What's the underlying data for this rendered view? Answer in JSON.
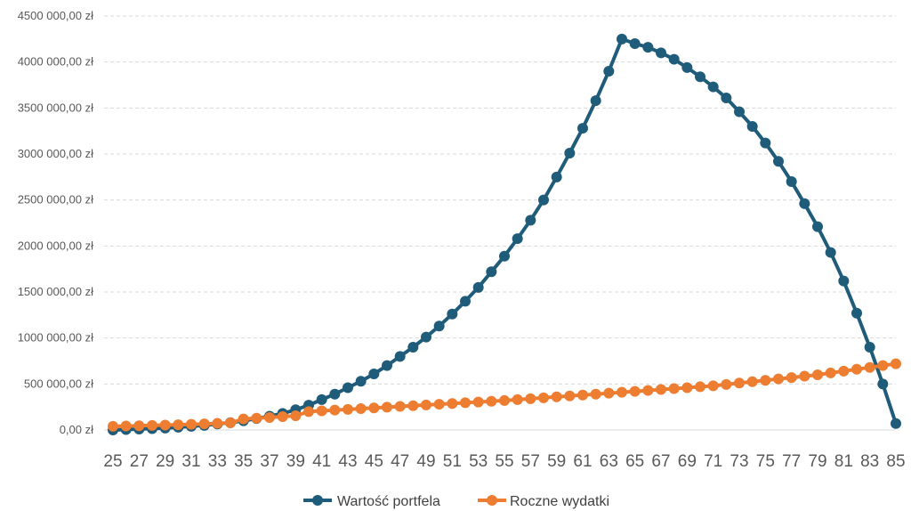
{
  "chart_data": {
    "type": "line",
    "x": [
      25,
      26,
      27,
      28,
      29,
      30,
      31,
      32,
      33,
      34,
      35,
      36,
      37,
      38,
      39,
      40,
      41,
      42,
      43,
      44,
      45,
      46,
      47,
      48,
      49,
      50,
      51,
      52,
      53,
      54,
      55,
      56,
      57,
      58,
      59,
      60,
      61,
      62,
      63,
      64,
      65,
      66,
      67,
      68,
      69,
      70,
      71,
      72,
      73,
      74,
      75,
      76,
      77,
      78,
      79,
      80,
      81,
      82,
      83,
      84,
      85
    ],
    "x_tick_labels": [
      "25",
      "27",
      "29",
      "31",
      "33",
      "35",
      "37",
      "39",
      "41",
      "43",
      "45",
      "47",
      "49",
      "51",
      "53",
      "55",
      "57",
      "59",
      "61",
      "63",
      "65",
      "67",
      "69",
      "71",
      "73",
      "75",
      "77",
      "79",
      "81",
      "83",
      "85"
    ],
    "ylim": [
      0,
      4500000
    ],
    "y_tick_labels": [
      "0,00 zł",
      "500 000,00 zł",
      "1000 000,00 zł",
      "1500 000,00 zł",
      "2000 000,00 zł",
      "2500 000,00 zł",
      "3000 000,00 zł",
      "3500 000,00 zł",
      "4000 000,00 zł",
      "4500 000,00 zł"
    ],
    "grid": true,
    "legend_position": "bottom",
    "series": [
      {
        "name": "Wartość portfela",
        "color": "#1f5c7a",
        "values": [
          0,
          5000,
          10000,
          15000,
          20000,
          30000,
          40000,
          50000,
          65000,
          80000,
          100000,
          125000,
          150000,
          180000,
          220000,
          270000,
          330000,
          390000,
          460000,
          530000,
          610000,
          700000,
          800000,
          900000,
          1010000,
          1130000,
          1260000,
          1400000,
          1550000,
          1720000,
          1890000,
          2080000,
          2280000,
          2500000,
          2750000,
          3010000,
          3280000,
          3580000,
          3900000,
          4250000,
          4200000,
          4160000,
          4100000,
          4030000,
          3940000,
          3840000,
          3730000,
          3610000,
          3460000,
          3300000,
          3120000,
          2920000,
          2700000,
          2460000,
          2210000,
          1930000,
          1620000,
          1270000,
          900000,
          500000,
          70000
        ]
      },
      {
        "name": "Roczne wydatki",
        "color": "#ed7d31",
        "values": [
          40000,
          43000,
          46000,
          50000,
          53000,
          57000,
          62000,
          66000,
          72000,
          77000,
          120000,
          128000,
          136000,
          145000,
          155000,
          200000,
          208000,
          216000,
          224000,
          232000,
          240000,
          248000,
          256000,
          264000,
          272000,
          280000,
          288000,
          296000,
          304000,
          312000,
          320000,
          330000,
          340000,
          350000,
          360000,
          370000,
          380000,
          390000,
          400000,
          410000,
          420000,
          430000,
          440000,
          450000,
          460000,
          470000,
          480000,
          495000,
          510000,
          525000,
          540000,
          555000,
          570000,
          585000,
          600000,
          620000,
          640000,
          660000,
          680000,
          700000,
          720000
        ]
      }
    ]
  }
}
